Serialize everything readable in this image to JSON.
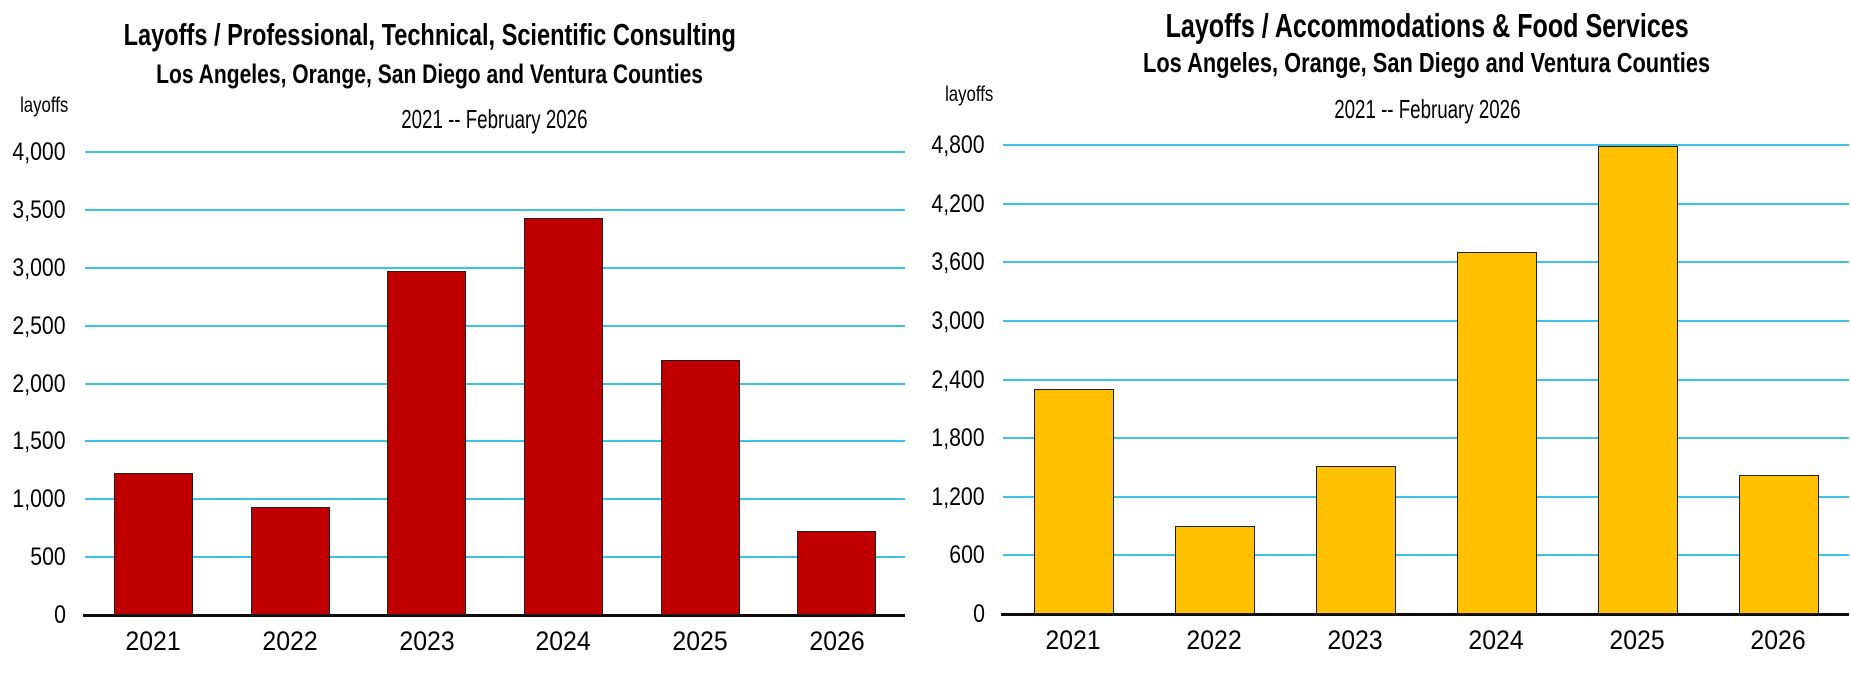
{
  "page": {
    "background_color": "#ffffff",
    "text_color": "#000000",
    "gridline_color": "#3EC1E9",
    "axis_color": "#0d0d0d"
  },
  "chart_data": [
    {
      "type": "bar",
      "title": "Layoffs / Professional, Technical, Scientific Consulting",
      "subtitle": "Los Angeles, Orange, San Diego and Ventura Counties",
      "period": "2021 -- February 2026",
      "ylabel": "layoffs",
      "xlabel": "",
      "categories": [
        "2021",
        "2022",
        "2023",
        "2024",
        "2025",
        "2026"
      ],
      "values": [
        1230,
        930,
        2970,
        3430,
        2200,
        730
      ],
      "ylim": [
        0,
        4000
      ],
      "ytick_step": 500,
      "bar_color": "#C00000",
      "bar_border_color": "#1f1f1f",
      "grid": true,
      "legend": false
    },
    {
      "type": "bar",
      "title": "Layoffs / Accommodations & Food Services",
      "subtitle": "Los Angeles, Orange, San Diego and Ventura Counties",
      "period": "2021 -- February 2026",
      "ylabel": "layoffs",
      "xlabel": "",
      "categories": [
        "2021",
        "2022",
        "2023",
        "2024",
        "2025",
        "2026"
      ],
      "values": [
        2300,
        900,
        1510,
        3700,
        4790,
        1420
      ],
      "ylim": [
        0,
        4800
      ],
      "ytick_step": 600,
      "bar_color": "#FFC000",
      "bar_border_color": "#1f1f1f",
      "grid": true,
      "legend": false
    }
  ]
}
